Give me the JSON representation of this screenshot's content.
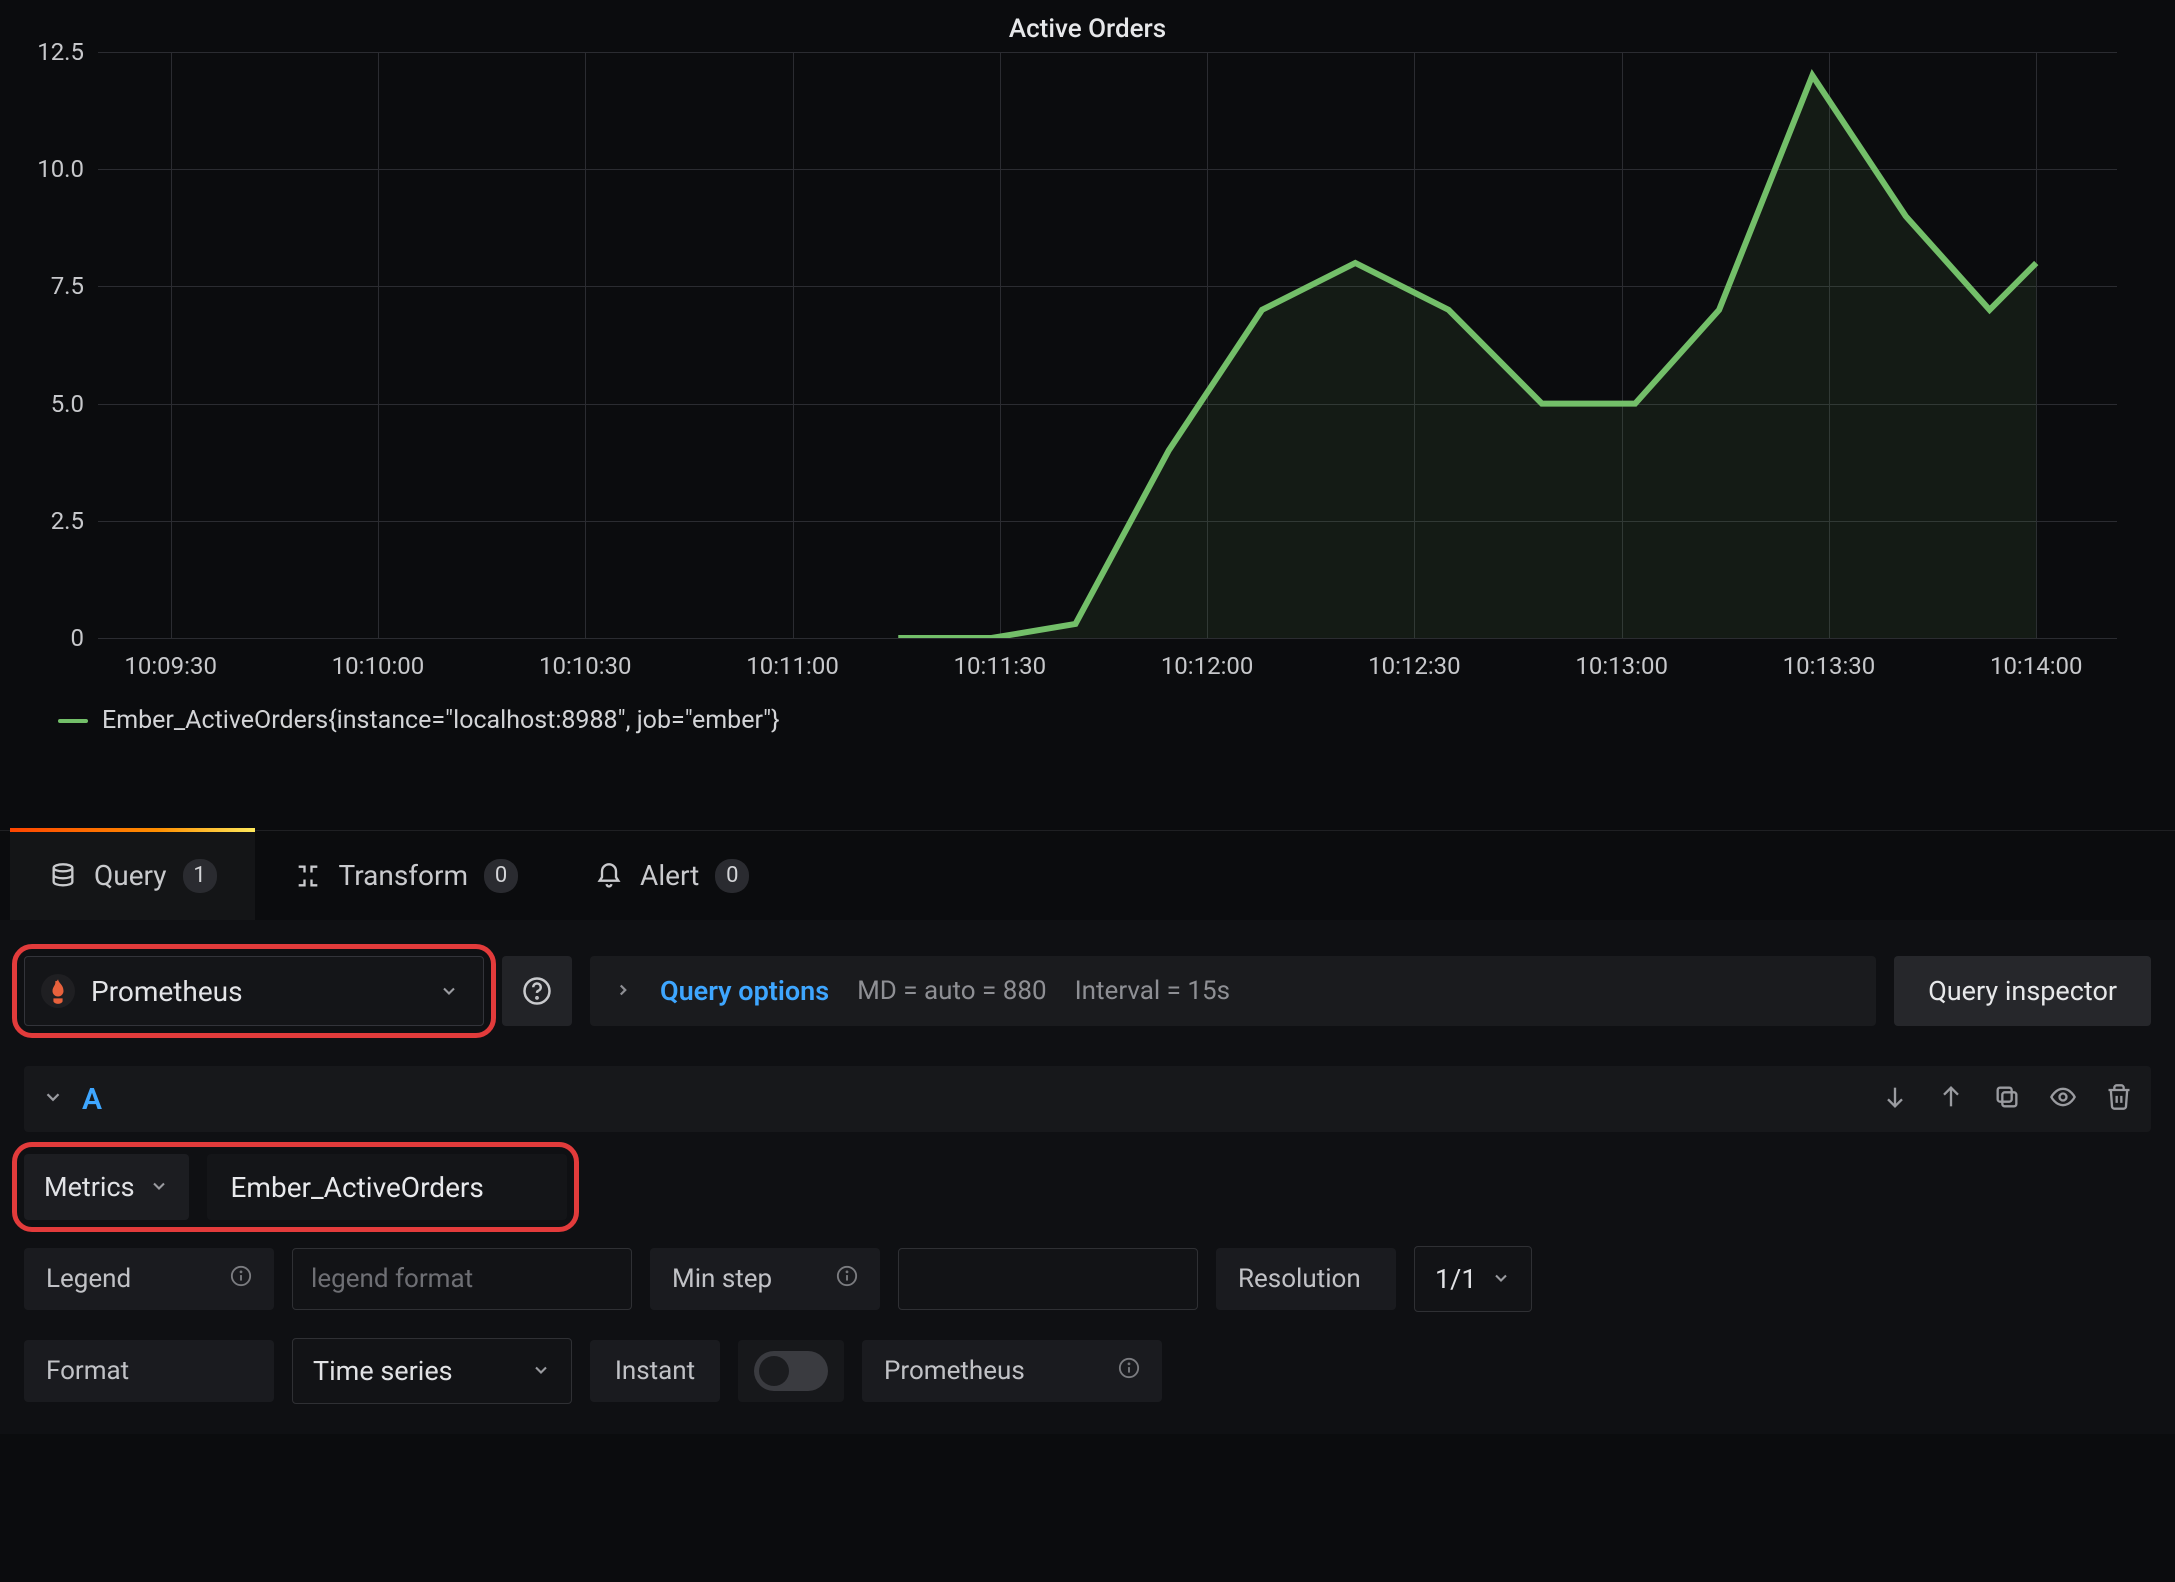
{
  "chart": {
    "title": "Active Orders",
    "type": "area",
    "line_color": "#73bf69",
    "fill_color": "rgba(115,191,105,0.09)",
    "grid_color": "#2b2c31",
    "background_color": "#0b0c0e",
    "ytick_labels": [
      "0",
      "2.5",
      "5.0",
      "7.5",
      "10.0",
      "12.5"
    ],
    "ylim": [
      0,
      12.5
    ],
    "xtick_labels": [
      "10:09:30",
      "10:10:00",
      "10:10:30",
      "10:11:00",
      "10:11:30",
      "10:12:00",
      "10:12:30",
      "10:13:00",
      "10:13:30",
      "10:14:00"
    ],
    "x_count": 10,
    "line_width": 2,
    "series": {
      "x_rel": [
        0.39,
        0.44,
        0.485,
        0.535,
        0.585,
        0.635,
        0.685,
        0.735,
        0.785,
        0.83,
        0.88,
        0.93,
        0.975,
        1.0
      ],
      "y_val": [
        0.0,
        0.0,
        0.3,
        4.0,
        7.0,
        8.0,
        7.0,
        5.0,
        5.0,
        7.0,
        12.0,
        9.0,
        7.0,
        8.0
      ]
    },
    "legend_text": "Ember_ActiveOrders{instance=\"localhost:8988\", job=\"ember\"}"
  },
  "tabs": {
    "query": {
      "label": "Query",
      "count": "1"
    },
    "transform": {
      "label": "Transform",
      "count": "0"
    },
    "alert": {
      "label": "Alert",
      "count": "0"
    }
  },
  "datasource": {
    "name": "Prometheus",
    "query_options_label": "Query options",
    "md_text": "MD = auto = 880",
    "interval_text": "Interval = 15s",
    "inspector_label": "Query inspector"
  },
  "query": {
    "ref": "A",
    "metrics_label": "Metrics",
    "metric_value": "Ember_ActiveOrders",
    "legend_label": "Legend",
    "legend_placeholder": "legend format",
    "minstep_label": "Min step",
    "resolution_label": "Resolution",
    "resolution_value": "1/1",
    "format_label": "Format",
    "format_value": "Time series",
    "instant_label": "Instant",
    "prometheus_label": "Prometheus"
  }
}
